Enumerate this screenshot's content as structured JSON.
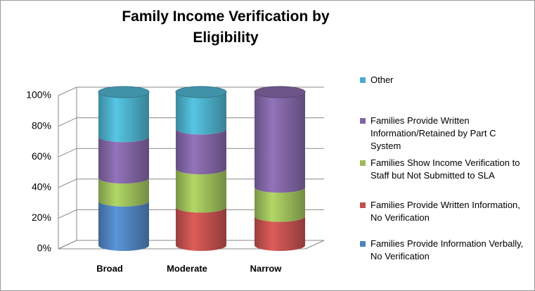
{
  "chart_data": {
    "type": "bar3d_stacked_cylinder",
    "title": "Family Income Verification by Eligibility",
    "categories": [
      "Broad",
      "Moderate",
      "Narrow"
    ],
    "series": [
      {
        "name": "Families Provide Information Verbally, No Verification",
        "color": "#4f81bd",
        "values": [
          29,
          0,
          0
        ]
      },
      {
        "name": "Families Provide Written Information, No Verification",
        "color": "#c0504d",
        "values": [
          0,
          25,
          19
        ]
      },
      {
        "name": "Families Show Income Verification to Staff but Not Submitted to SLA",
        "color": "#9bbb59",
        "values": [
          15,
          25,
          19
        ]
      },
      {
        "name": "Families Provide Written Information/Retained by Part C System",
        "color": "#8064a2",
        "values": [
          27,
          26,
          62
        ]
      },
      {
        "name": "Other",
        "color": "#4bacc6",
        "values": [
          29,
          24,
          0
        ]
      }
    ],
    "ylim": [
      0,
      100
    ],
    "yticks": [
      {
        "value": 0,
        "label": "0%"
      },
      {
        "value": 20,
        "label": "20%"
      },
      {
        "value": 40,
        "label": "40%"
      },
      {
        "value": 60,
        "label": "60%"
      },
      {
        "value": 80,
        "label": "80%"
      },
      {
        "value": 100,
        "label": "100%"
      }
    ],
    "grid": true,
    "legend": "right"
  }
}
